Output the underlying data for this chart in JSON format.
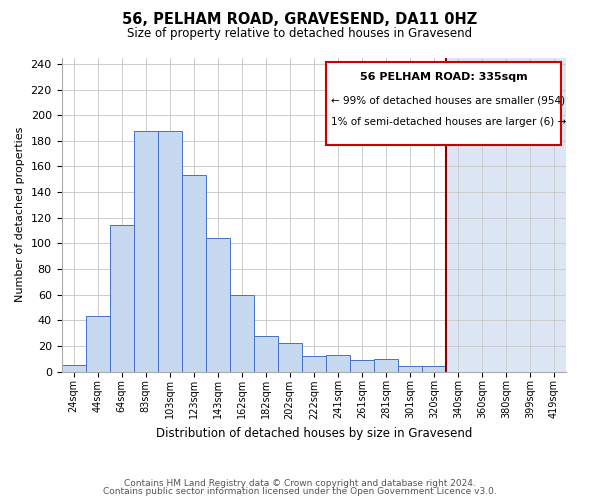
{
  "title": "56, PELHAM ROAD, GRAVESEND, DA11 0HZ",
  "subtitle": "Size of property relative to detached houses in Gravesend",
  "xlabel": "Distribution of detached houses by size in Gravesend",
  "ylabel": "Number of detached properties",
  "footer_lines": [
    "Contains HM Land Registry data © Crown copyright and database right 2024.",
    "Contains public sector information licensed under the Open Government Licence v3.0."
  ],
  "bin_labels": [
    "24sqm",
    "44sqm",
    "64sqm",
    "83sqm",
    "103sqm",
    "123sqm",
    "143sqm",
    "162sqm",
    "182sqm",
    "202sqm",
    "222sqm",
    "241sqm",
    "261sqm",
    "281sqm",
    "301sqm",
    "320sqm",
    "340sqm",
    "360sqm",
    "380sqm",
    "399sqm",
    "419sqm"
  ],
  "bar_values": [
    5,
    43,
    114,
    188,
    188,
    153,
    104,
    60,
    28,
    22,
    12,
    13,
    9,
    10,
    4,
    4,
    0,
    0,
    0,
    0,
    0
  ],
  "bar_color": "#c6d9f0",
  "bar_edge_color": "#4472c4",
  "reference_line_color": "#8b0000",
  "reference_bar_idx": 16,
  "annotation_title": "56 PELHAM ROAD: 335sqm",
  "annotation_line1": "← 99% of detached houses are smaller (954)",
  "annotation_line2": "1% of semi-detached houses are larger (6) →",
  "annotation_box_color": "#ffffff",
  "annotation_box_edge_color": "#cc0000",
  "highlight_color": "#dce6f5",
  "ylim": [
    0,
    245
  ],
  "yticks": [
    0,
    20,
    40,
    60,
    80,
    100,
    120,
    140,
    160,
    180,
    200,
    220,
    240
  ],
  "background_color": "#ffffff",
  "grid_color": "#cccccc"
}
